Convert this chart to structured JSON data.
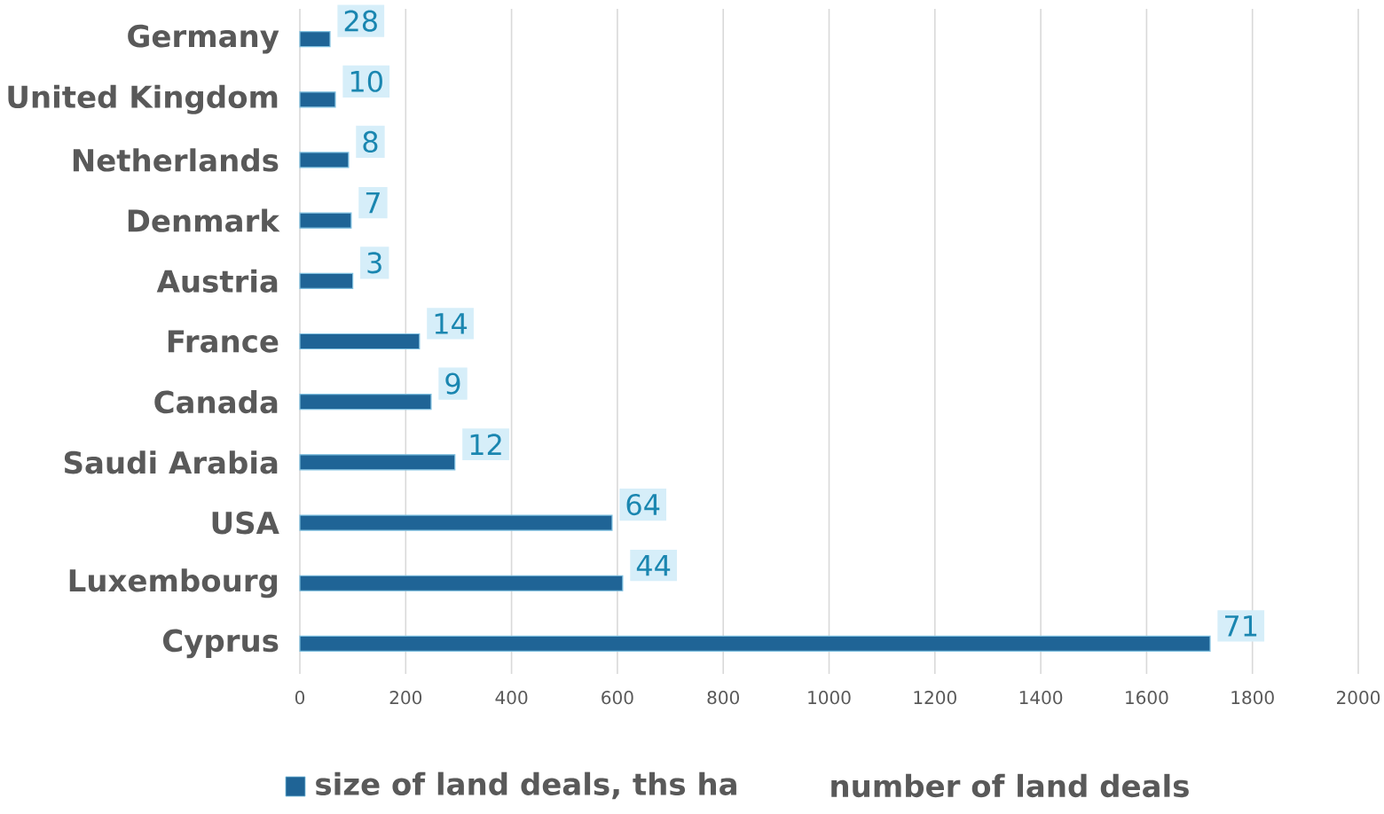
{
  "chart_data": {
    "type": "bar",
    "orientation": "horizontal",
    "categories": [
      "Germany",
      "United Kingdom",
      "Netherlands",
      "Denmark",
      "Austria",
      "France",
      "Canada",
      "Saudi Arabia",
      "USA",
      "Luxembourg",
      "Cyprus"
    ],
    "series": [
      {
        "name": "size of land deals, ths ha",
        "color": "#1f6496",
        "values": [
          57,
          67,
          92,
          97,
          100,
          226,
          248,
          293,
          590,
          610,
          1720
        ]
      },
      {
        "name": "number of land deals",
        "type": "other",
        "values": [
          null,
          null,
          null,
          null,
          null,
          null,
          null,
          null,
          null,
          null,
          null
        ],
        "value_labels": [
          "28",
          "10",
          "8",
          "7",
          "3",
          "14",
          "9",
          "12",
          "64",
          "44",
          "71"
        ]
      }
    ],
    "xlim": [
      0,
      2000
    ],
    "xticks": [
      0,
      200,
      400,
      600,
      800,
      1000,
      1200,
      1400,
      1600,
      1800,
      2000
    ],
    "grid": "x",
    "legend": "bottom"
  }
}
